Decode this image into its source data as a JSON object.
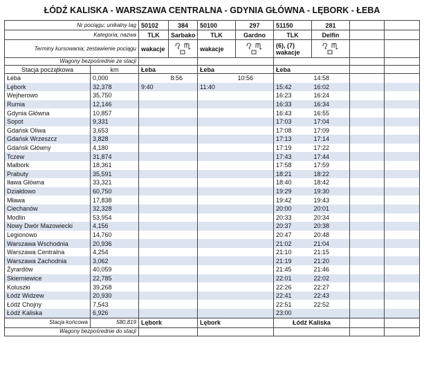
{
  "title": "ŁÓDŹ KALISKA - WARSZAWA CENTRALNA - GDYNIA GŁÓWNA - LĘBORK - ŁEBA",
  "labels": {
    "number": "Nr pociągu; unikalny tag",
    "category": "Kategoria; nazwa",
    "terms": "Terminy kursowania; zestawienie pociągu",
    "through_from": "Wagony bezpośrednie ze stacji",
    "start": "Stacja początkowa",
    "km": "km",
    "end": "Stacja końcowa",
    "through_to": "Wagony bezpośrednie do stacji"
  },
  "trains": [
    {
      "number": "50102",
      "tag": "384",
      "category": "TLK",
      "name": "Sarbako",
      "terms": "wakacje",
      "start": "Łeba",
      "end": "Lębork"
    },
    {
      "number": "50100",
      "tag": "297",
      "category": "TLK",
      "name": "Gardno",
      "terms": "wakacje",
      "start": "Łeba",
      "end": "Lębork"
    },
    {
      "number": "51150",
      "tag": "281",
      "category": "TLK",
      "name": "Delfin",
      "terms": "(6), (7) wakacje",
      "start": "Łeba",
      "end": "Łódź Kaliska"
    }
  ],
  "total_km": "580,819",
  "stations": [
    {
      "name": "Łeba",
      "km": "0,000",
      "times": [
        [
          null,
          "8:56"
        ],
        [
          null,
          "10:56"
        ],
        [
          null,
          "14:58"
        ]
      ]
    },
    {
      "name": "Lębork",
      "km": "32,378",
      "times": [
        [
          "9:40",
          null
        ],
        [
          "11:40",
          null
        ],
        [
          "15:42",
          "16:02"
        ]
      ]
    },
    {
      "name": "Wejherowo",
      "km": "35,750",
      "times": [
        [
          null,
          null
        ],
        [
          null,
          null
        ],
        [
          "16:23",
          "16:24"
        ]
      ]
    },
    {
      "name": "Rumia",
      "km": "12,146",
      "times": [
        [
          null,
          null
        ],
        [
          null,
          null
        ],
        [
          "16:33",
          "16:34"
        ]
      ]
    },
    {
      "name": "Gdynia Główna",
      "km": "10,857",
      "times": [
        [
          null,
          null
        ],
        [
          null,
          null
        ],
        [
          "16:43",
          "16:55"
        ]
      ]
    },
    {
      "name": "Sopot",
      "km": "9,331",
      "times": [
        [
          null,
          null
        ],
        [
          null,
          null
        ],
        [
          "17:03",
          "17:04"
        ]
      ]
    },
    {
      "name": "Gdańsk Oliwa",
      "km": "3,653",
      "times": [
        [
          null,
          null
        ],
        [
          null,
          null
        ],
        [
          "17:08",
          "17:09"
        ]
      ]
    },
    {
      "name": "Gdańsk Wrzeszcz",
      "km": "3,828",
      "times": [
        [
          null,
          null
        ],
        [
          null,
          null
        ],
        [
          "17:13",
          "17:14"
        ]
      ]
    },
    {
      "name": "Gdańsk Główny",
      "km": "4,180",
      "times": [
        [
          null,
          null
        ],
        [
          null,
          null
        ],
        [
          "17:19",
          "17:22"
        ]
      ]
    },
    {
      "name": "Tczew",
      "km": "31,874",
      "times": [
        [
          null,
          null
        ],
        [
          null,
          null
        ],
        [
          "17:43",
          "17:44"
        ]
      ]
    },
    {
      "name": "Malbork",
      "km": "18,361",
      "times": [
        [
          null,
          null
        ],
        [
          null,
          null
        ],
        [
          "17:58",
          "17:59"
        ]
      ]
    },
    {
      "name": "Prabuty",
      "km": "35,591",
      "times": [
        [
          null,
          null
        ],
        [
          null,
          null
        ],
        [
          "18:21",
          "18:22"
        ]
      ]
    },
    {
      "name": "Iława Główna",
      "km": "33,321",
      "times": [
        [
          null,
          null
        ],
        [
          null,
          null
        ],
        [
          "18:40",
          "18:42"
        ]
      ]
    },
    {
      "name": "Działdowo",
      "km": "60,750",
      "times": [
        [
          null,
          null
        ],
        [
          null,
          null
        ],
        [
          "19:29",
          "19:30"
        ]
      ]
    },
    {
      "name": "Mława",
      "km": "17,838",
      "times": [
        [
          null,
          null
        ],
        [
          null,
          null
        ],
        [
          "19:42",
          "19:43"
        ]
      ]
    },
    {
      "name": "Ciechanów",
      "km": "32,328",
      "times": [
        [
          null,
          null
        ],
        [
          null,
          null
        ],
        [
          "20:00",
          "20:01"
        ]
      ]
    },
    {
      "name": "Modlin",
      "km": "53,954",
      "times": [
        [
          null,
          null
        ],
        [
          null,
          null
        ],
        [
          "20:33",
          "20:34"
        ]
      ]
    },
    {
      "name": "Nowy Dwór Mazowiecki",
      "km": "4,156",
      "times": [
        [
          null,
          null
        ],
        [
          null,
          null
        ],
        [
          "20:37",
          "20:38"
        ]
      ]
    },
    {
      "name": "Legionowo",
      "km": "14,760",
      "times": [
        [
          null,
          null
        ],
        [
          null,
          null
        ],
        [
          "20:47",
          "20:48"
        ]
      ]
    },
    {
      "name": "Warszawa Wschodnia",
      "km": "20,936",
      "times": [
        [
          null,
          null
        ],
        [
          null,
          null
        ],
        [
          "21:02",
          "21:04"
        ]
      ]
    },
    {
      "name": "Warszawa Centralna",
      "km": "4,254",
      "times": [
        [
          null,
          null
        ],
        [
          null,
          null
        ],
        [
          "21:10",
          "21:15"
        ]
      ]
    },
    {
      "name": "Warszawa Zachodnia",
      "km": "3,062",
      "times": [
        [
          null,
          null
        ],
        [
          null,
          null
        ],
        [
          "21:19",
          "21:20"
        ]
      ]
    },
    {
      "name": "Żyrardów",
      "km": "40,059",
      "times": [
        [
          null,
          null
        ],
        [
          null,
          null
        ],
        [
          "21:45",
          "21:46"
        ]
      ]
    },
    {
      "name": "Skierniewice",
      "km": "22,785",
      "times": [
        [
          null,
          null
        ],
        [
          null,
          null
        ],
        [
          "22:01",
          "22:02"
        ]
      ]
    },
    {
      "name": "Koluszki",
      "km": "39,268",
      "times": [
        [
          null,
          null
        ],
        [
          null,
          null
        ],
        [
          "22:26",
          "22:27"
        ]
      ]
    },
    {
      "name": "Łódź Widzew",
      "km": "20,930",
      "times": [
        [
          null,
          null
        ],
        [
          null,
          null
        ],
        [
          "22:41",
          "22:43"
        ]
      ]
    },
    {
      "name": "Łódź Chojny",
      "km": "7,543",
      "times": [
        [
          null,
          null
        ],
        [
          null,
          null
        ],
        [
          "22:51",
          "22:52"
        ]
      ]
    },
    {
      "name": "Łódź Kaliska",
      "km": "6,926",
      "times": [
        [
          null,
          null
        ],
        [
          null,
          null
        ],
        [
          "23:00",
          null
        ]
      ]
    }
  ]
}
